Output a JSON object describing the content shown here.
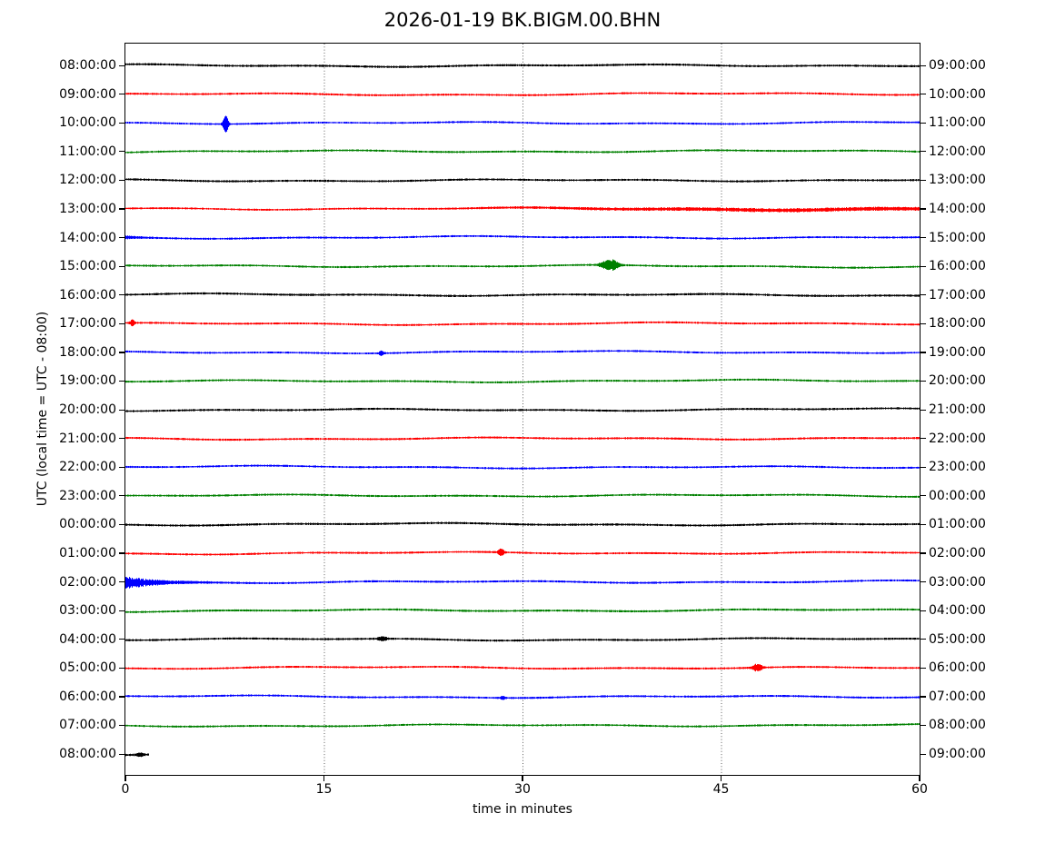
{
  "chart_data": {
    "type": "line",
    "subtype": "helicorder-dayplot",
    "title": "2026-01-19 BK.BIGM.00.BHN",
    "xlabel": "time in minutes",
    "ylabel": "UTC (local time = UTC - 08:00)",
    "xlim": [
      0,
      60
    ],
    "x_ticks": [
      0,
      15,
      30,
      45,
      60
    ],
    "grid": "dotted-vertical-at-15-30-45",
    "line_interval_minutes": 60,
    "color_cycle": [
      "#000000",
      "#ff0000",
      "#0000ff",
      "#008000"
    ],
    "rows": [
      {
        "left": "08:00:00",
        "right": "09:00:00",
        "color": "#000000",
        "noise": 1.25,
        "coverage": 60,
        "events": []
      },
      {
        "left": "09:00:00",
        "right": "10:00:00",
        "color": "#ff0000",
        "noise": 1.15,
        "coverage": 60,
        "events": []
      },
      {
        "left": "10:00:00",
        "right": "11:00:00",
        "color": "#0000ff",
        "noise": 1.1,
        "coverage": 60,
        "events": [
          {
            "type": "spike",
            "t": 7.55,
            "amp": 8.5,
            "dur": 0.35
          }
        ]
      },
      {
        "left": "11:00:00",
        "right": "12:00:00",
        "color": "#008000",
        "noise": 1.15,
        "coverage": 60,
        "events": []
      },
      {
        "left": "12:00:00",
        "right": "13:00:00",
        "color": "#000000",
        "noise": 1.2,
        "coverage": 60,
        "events": []
      },
      {
        "left": "13:00:00",
        "right": "14:00:00",
        "color": "#ff0000",
        "noise": 1.1,
        "coverage": 60,
        "events": [
          {
            "type": "tremor",
            "t": 23,
            "amp": 1.3,
            "dur": 37
          }
        ]
      },
      {
        "left": "14:00:00",
        "right": "15:00:00",
        "color": "#0000ff",
        "noise": 1.15,
        "coverage": 60,
        "events": [
          {
            "type": "decay",
            "t": 0,
            "amp": 1.2,
            "dur": 3
          }
        ]
      },
      {
        "left": "15:00:00",
        "right": "16:00:00",
        "color": "#008000",
        "noise": 1.15,
        "coverage": 60,
        "events": [
          {
            "type": "burst",
            "t": 36.1,
            "amp": 2.5,
            "dur": 0.7
          },
          {
            "type": "burst",
            "t": 36.7,
            "amp": 5.5,
            "dur": 0.9
          }
        ]
      },
      {
        "left": "16:00:00",
        "right": "17:00:00",
        "color": "#000000",
        "noise": 1.25,
        "coverage": 60,
        "events": []
      },
      {
        "left": "17:00:00",
        "right": "18:00:00",
        "color": "#ff0000",
        "noise": 1.15,
        "coverage": 60,
        "events": [
          {
            "type": "spike",
            "t": 0.5,
            "amp": 2.8,
            "dur": 0.3
          }
        ]
      },
      {
        "left": "18:00:00",
        "right": "19:00:00",
        "color": "#0000ff",
        "noise": 1.1,
        "coverage": 60,
        "events": [
          {
            "type": "spike",
            "t": 19.3,
            "amp": 2.2,
            "dur": 0.3
          }
        ]
      },
      {
        "left": "19:00:00",
        "right": "20:00:00",
        "color": "#008000",
        "noise": 1.15,
        "coverage": 60,
        "events": []
      },
      {
        "left": "20:00:00",
        "right": "21:00:00",
        "color": "#000000",
        "noise": 1.2,
        "coverage": 60,
        "events": []
      },
      {
        "left": "21:00:00",
        "right": "22:00:00",
        "color": "#ff0000",
        "noise": 1.2,
        "coverage": 60,
        "events": []
      },
      {
        "left": "22:00:00",
        "right": "23:00:00",
        "color": "#0000ff",
        "noise": 1.15,
        "coverage": 60,
        "events": []
      },
      {
        "left": "23:00:00",
        "right": "00:00:00",
        "color": "#008000",
        "noise": 1.15,
        "coverage": 60,
        "events": []
      },
      {
        "left": "00:00:00",
        "right": "01:00:00",
        "color": "#000000",
        "noise": 1.25,
        "coverage": 60,
        "events": []
      },
      {
        "left": "01:00:00",
        "right": "02:00:00",
        "color": "#ff0000",
        "noise": 1.15,
        "coverage": 60,
        "events": [
          {
            "type": "spike",
            "t": 28.35,
            "amp": 3.2,
            "dur": 0.4
          }
        ]
      },
      {
        "left": "02:00:00",
        "right": "03:00:00",
        "color": "#0000ff",
        "noise": 1.15,
        "coverage": 60,
        "events": [
          {
            "type": "decay",
            "t": 0,
            "amp": 6.8,
            "dur": 6.5
          }
        ]
      },
      {
        "left": "03:00:00",
        "right": "04:00:00",
        "color": "#008000",
        "noise": 1.2,
        "coverage": 60,
        "events": []
      },
      {
        "left": "04:00:00",
        "right": "05:00:00",
        "color": "#000000",
        "noise": 1.2,
        "coverage": 60,
        "events": [
          {
            "type": "burst",
            "t": 19.4,
            "amp": 2.0,
            "dur": 0.6
          }
        ]
      },
      {
        "left": "05:00:00",
        "right": "06:00:00",
        "color": "#ff0000",
        "noise": 1.15,
        "coverage": 60,
        "events": [
          {
            "type": "burst",
            "t": 47.7,
            "amp": 4.0,
            "dur": 0.7
          }
        ]
      },
      {
        "left": "06:00:00",
        "right": "07:00:00",
        "color": "#0000ff",
        "noise": 1.15,
        "coverage": 60,
        "events": [
          {
            "type": "spike",
            "t": 28.5,
            "amp": 1.5,
            "dur": 0.3
          }
        ]
      },
      {
        "left": "07:00:00",
        "right": "08:00:00",
        "color": "#008000",
        "noise": 1.15,
        "coverage": 60,
        "events": []
      },
      {
        "left": "08:00:00",
        "right": "09:00:00",
        "color": "#000000",
        "noise": 1.3,
        "coverage": 1.8,
        "events": [
          {
            "type": "spike",
            "t": 1.1,
            "amp": 1.5,
            "dur": 0.5
          }
        ]
      }
    ]
  }
}
